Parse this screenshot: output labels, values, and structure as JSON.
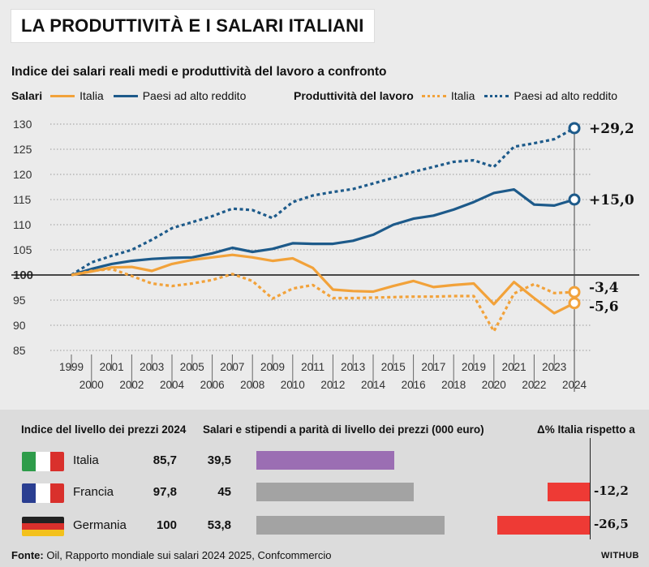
{
  "header": {
    "title": "LA PRODUTTIVITÀ E I SALARI ITALIANI",
    "subtitle": "Indice dei salari reali medi e produttività del lavoro a confronto"
  },
  "legend": {
    "salari_label": "Salari",
    "prod_label": "Produttività del lavoro",
    "italia": "Italia",
    "alto": "Paesi ad alto reddito"
  },
  "colors": {
    "orange": "#f2a23a",
    "blue": "#1d5a8a",
    "purple": "#9b6eb3",
    "gray": "#a3a3a3",
    "red": "#ee3a35"
  },
  "chart_data": {
    "type": "line",
    "x": [
      1999,
      2000,
      2001,
      2002,
      2003,
      2004,
      2005,
      2006,
      2007,
      2008,
      2009,
      2010,
      2011,
      2012,
      2013,
      2014,
      2015,
      2016,
      2017,
      2018,
      2019,
      2020,
      2021,
      2022,
      2023,
      2024
    ],
    "ylim": [
      85,
      130
    ],
    "yticks": [
      85,
      90,
      95,
      100,
      105,
      110,
      115,
      120,
      125,
      130
    ],
    "baseline": 100,
    "xticks_top": [
      "1999",
      "2001",
      "2003",
      "2005",
      "2007",
      "2009",
      "2011",
      "2013",
      "2015",
      "2017",
      "2019",
      "2021",
      "2023"
    ],
    "xticks_bottom": [
      "2000",
      "2002",
      "2004",
      "2006",
      "2008",
      "2010",
      "2012",
      "2014",
      "2016",
      "2018",
      "2020",
      "2022",
      "2024"
    ],
    "series": [
      {
        "name": "Salari - Paesi ad alto reddito",
        "color": "#1d5a8a",
        "style": "solid",
        "values": [
          100,
          101.2,
          102.2,
          102.8,
          103.2,
          103.4,
          103.5,
          104.3,
          105.4,
          104.6,
          105.2,
          106.3,
          106.2,
          106.2,
          106.8,
          108,
          110,
          111.2,
          111.8,
          113,
          114.5,
          116.3,
          117,
          114,
          113.8,
          115
        ]
      },
      {
        "name": "Salari - Italia",
        "color": "#f2a23a",
        "style": "solid",
        "values": [
          100,
          100.7,
          101.5,
          101.6,
          100.8,
          102.2,
          103,
          103.5,
          104,
          103.5,
          102.8,
          103.3,
          101.4,
          97.1,
          96.8,
          96.7,
          97.8,
          98.8,
          97.6,
          98,
          98.3,
          94.2,
          98.6,
          95.4,
          92.4,
          94.4
        ]
      },
      {
        "name": "Produttività - Paesi ad alto reddito",
        "color": "#1d5a8a",
        "style": "dotted",
        "values": [
          100,
          102.5,
          103.8,
          105,
          107,
          109.3,
          110.5,
          111.7,
          113.2,
          112.9,
          111.3,
          114.5,
          115.8,
          116.5,
          117.1,
          118.2,
          119.3,
          120.5,
          121.5,
          122.5,
          122.8,
          121.5,
          125.5,
          126.2,
          127,
          129.2
        ]
      },
      {
        "name": "Produttività - Italia",
        "color": "#f2a23a",
        "style": "dotted",
        "values": [
          100,
          100.8,
          101.2,
          99.8,
          98.3,
          97.8,
          98.3,
          99,
          100.2,
          98.8,
          95.3,
          97.3,
          98,
          95.4,
          95.4,
          95.5,
          95.6,
          95.7,
          95.7,
          95.8,
          95.8,
          88.8,
          96.3,
          98.2,
          96.4,
          96.6
        ]
      }
    ],
    "end_labels": [
      {
        "series": "Produttività - Paesi ad alto reddito",
        "text": "+29,2",
        "y": 129.2
      },
      {
        "series": "Salari - Paesi ad alto reddito",
        "text": "+15,0",
        "y": 115
      },
      {
        "series": "Produttività - Italia",
        "text": "-3,4",
        "y": 96.6
      },
      {
        "series": "Salari - Italia",
        "text": "-5,6",
        "y": 94.4
      }
    ]
  },
  "table": {
    "h1": "Indice del livello dei prezzi 2024",
    "h2": "Salari e stipendi a parità di livello dei prezzi (000 euro)",
    "h3": "Δ% Italia rispetto a",
    "rows": [
      {
        "country": "Italia",
        "price_index": "85,7",
        "salary": "39,5",
        "salary_value": 39.5,
        "delta": "",
        "delta_value": 0,
        "bar_color": "#9b6eb3",
        "flag": [
          "#2e9c4a",
          "#ffffff",
          "#d9302c"
        ]
      },
      {
        "country": "Francia",
        "price_index": "97,8",
        "salary": "45",
        "salary_value": 45,
        "delta": "-12,2",
        "delta_value": -12.2,
        "bar_color": "#a3a3a3",
        "flag": [
          "#2a3e91",
          "#ffffff",
          "#d9302c"
        ]
      },
      {
        "country": "Germania",
        "price_index": "100",
        "salary": "53,8",
        "salary_value": 53.8,
        "delta": "-26,5",
        "delta_value": -26.5,
        "bar_color": "#a3a3a3",
        "flag": [
          "#222222",
          "#d9302c",
          "#f3c11c"
        ]
      }
    ]
  },
  "footer": {
    "source_label": "Fonte:",
    "source_text": " Oil, Rapporto mondiale sui salari 2024 2025, Confcommercio",
    "brand": "WITHUB"
  }
}
